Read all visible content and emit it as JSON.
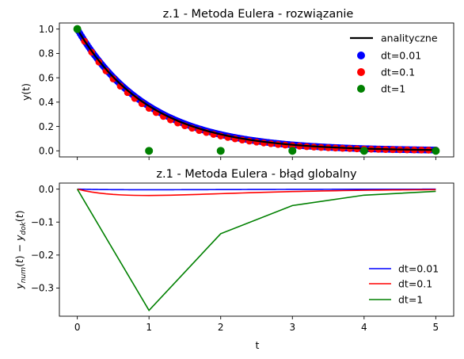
{
  "chart_data": [
    {
      "type": "scatter",
      "title": "z.1 - Metoda Eulera - rozwiązanie",
      "xlabel": "",
      "ylabel": "y(t)",
      "xlim": [
        -0.25,
        5.25
      ],
      "ylim": [
        -0.05,
        1.05
      ],
      "x_ticks": [
        0,
        1,
        2,
        3,
        4,
        5
      ],
      "x_tick_labels_shown": false,
      "y_ticks": [
        "0.0",
        "0.2",
        "0.4",
        "0.6",
        "0.8",
        "1.0"
      ],
      "grid": false,
      "legend_position": "upper right",
      "decay_rate": 1,
      "series": [
        {
          "name": "analityczne",
          "kind": "line",
          "color": "#000000",
          "style": "solid",
          "function": "exp(-t)",
          "t_range": [
            0,
            5
          ]
        },
        {
          "name": "dt=0.01",
          "kind": "markers",
          "color": "#0000ff",
          "dt": 0.01,
          "t_range": [
            0,
            5
          ]
        },
        {
          "name": "dt=0.1",
          "kind": "markers",
          "color": "#ff0000",
          "dt": 0.1,
          "t_range": [
            0,
            5
          ]
        },
        {
          "name": "dt=1",
          "kind": "markers",
          "color": "#008000",
          "x": [
            0,
            1,
            2,
            3,
            4,
            5
          ],
          "y": [
            1,
            0,
            0,
            0,
            0,
            0
          ]
        }
      ]
    },
    {
      "type": "line",
      "title": "z.1 - Metoda Eulera - błąd globalny",
      "xlabel": "t",
      "ylabel": "y_num(t) − y_dok(t)",
      "xlim": [
        -0.25,
        5.25
      ],
      "ylim": [
        -0.3855,
        0.0184
      ],
      "x_ticks": [
        "0",
        "1",
        "2",
        "3",
        "4",
        "5"
      ],
      "y_ticks": [
        "0.0",
        "−0.1",
        "−0.2",
        "−0.3"
      ],
      "grid": false,
      "legend_position": "lower right",
      "series": [
        {
          "name": "dt=0.01",
          "color": "#0000ff",
          "dt": 0.01,
          "t_range": [
            0,
            5
          ]
        },
        {
          "name": "dt=0.1",
          "color": "#ff0000",
          "dt": 0.1,
          "t_range": [
            0,
            5
          ]
        },
        {
          "name": "dt=1",
          "color": "#008000",
          "x": [
            0,
            1,
            2,
            3,
            4,
            5
          ],
          "y": [
            0,
            -0.3679,
            -0.1353,
            -0.0498,
            -0.0183,
            -0.0067
          ]
        }
      ]
    }
  ]
}
